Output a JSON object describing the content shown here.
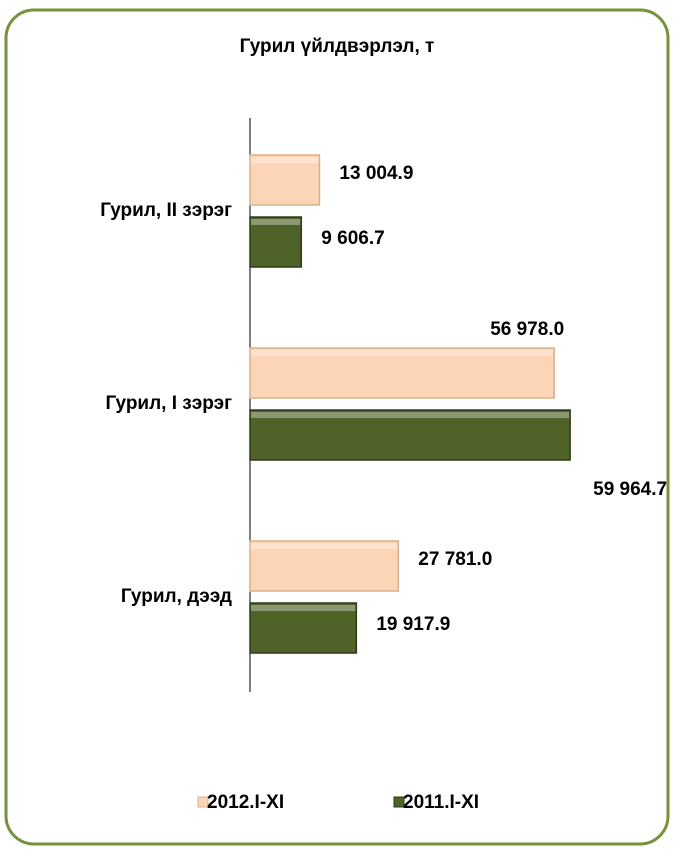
{
  "chart_data": {
    "type": "hbar",
    "title": "Гурил үйлдвэрлэл,  т",
    "categories": [
      "Гурил,  II зэрэг",
      "Гурил, I зэрэг",
      "Гурил, дээд"
    ],
    "series": [
      {
        "name": "2012.I-XI",
        "color": "#fbd5b5",
        "values": [
          13004.9,
          56978.0,
          27781.0
        ],
        "value_labels": [
          "13 004.9",
          "56 978.0",
          "27 781.0"
        ]
      },
      {
        "name": "2011.I-XI",
        "color": "#4f6228",
        "values": [
          9606.7,
          59964.7,
          19917.9
        ],
        "value_labels": [
          "9 606.7",
          "59 964.7",
          "19 917.9"
        ]
      }
    ],
    "xlim": [
      0,
      65000
    ],
    "legend": "bottom"
  }
}
